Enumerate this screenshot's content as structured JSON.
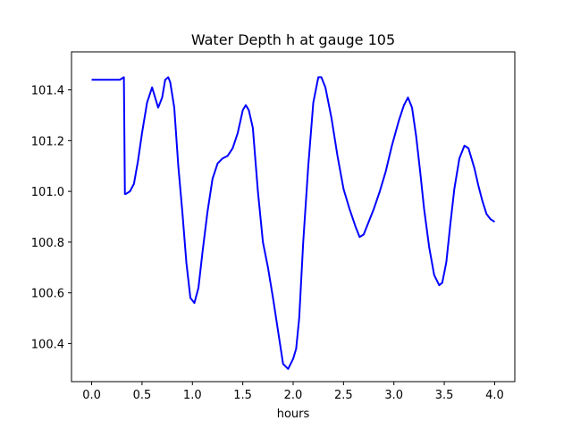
{
  "chart_data": {
    "type": "line",
    "title": "Water Depth h at gauge 105",
    "xlabel": "hours",
    "ylabel": "",
    "xlim": [
      -0.2,
      4.2
    ],
    "ylim": [
      100.25,
      101.55
    ],
    "grid": false,
    "legend": "none",
    "x_ticks": [
      0.0,
      0.5,
      1.0,
      1.5,
      2.0,
      2.5,
      3.0,
      3.5,
      4.0
    ],
    "x_tick_labels": [
      "0.0",
      "0.5",
      "1.0",
      "1.5",
      "2.0",
      "2.5",
      "3.0",
      "3.5",
      "4.0"
    ],
    "y_ticks": [
      100.4,
      100.6,
      100.8,
      101.0,
      101.2,
      101.4
    ],
    "y_tick_labels": [
      "100.4",
      "100.6",
      "100.8",
      "101.0",
      "101.2",
      "101.4"
    ],
    "series": [
      {
        "color": "#0000ff",
        "x": [
          0.0,
          0.1,
          0.2,
          0.28,
          0.32,
          0.33,
          0.34,
          0.38,
          0.42,
          0.46,
          0.5,
          0.55,
          0.6,
          0.63,
          0.66,
          0.7,
          0.73,
          0.76,
          0.78,
          0.82,
          0.86,
          0.9,
          0.94,
          0.98,
          1.02,
          1.06,
          1.1,
          1.15,
          1.2,
          1.25,
          1.3,
          1.35,
          1.4,
          1.45,
          1.5,
          1.53,
          1.56,
          1.6,
          1.65,
          1.7,
          1.75,
          1.8,
          1.85,
          1.9,
          1.95,
          2.0,
          2.03,
          2.06,
          2.1,
          2.15,
          2.2,
          2.25,
          2.28,
          2.32,
          2.38,
          2.44,
          2.5,
          2.56,
          2.62,
          2.66,
          2.7,
          2.75,
          2.8,
          2.86,
          2.92,
          2.98,
          3.05,
          3.1,
          3.14,
          3.18,
          3.22,
          3.26,
          3.3,
          3.35,
          3.4,
          3.45,
          3.48,
          3.52,
          3.56,
          3.6,
          3.65,
          3.7,
          3.74,
          3.77,
          3.8,
          3.84,
          3.88,
          3.92,
          3.96,
          4.0
        ],
        "y": [
          101.44,
          101.44,
          101.44,
          101.44,
          101.45,
          100.99,
          100.99,
          101.0,
          101.03,
          101.12,
          101.23,
          101.35,
          101.41,
          101.37,
          101.33,
          101.37,
          101.44,
          101.45,
          101.43,
          101.33,
          101.1,
          100.92,
          100.72,
          100.58,
          100.56,
          100.62,
          100.76,
          100.92,
          101.05,
          101.11,
          101.13,
          101.14,
          101.17,
          101.23,
          101.32,
          101.34,
          101.32,
          101.25,
          101.0,
          100.8,
          100.7,
          100.58,
          100.45,
          100.32,
          100.3,
          100.34,
          100.38,
          100.5,
          100.8,
          101.1,
          101.35,
          101.45,
          101.45,
          101.41,
          101.29,
          101.14,
          101.01,
          100.93,
          100.86,
          100.82,
          100.83,
          100.88,
          100.93,
          101.0,
          101.08,
          101.18,
          101.28,
          101.34,
          101.37,
          101.33,
          101.22,
          101.08,
          100.93,
          100.78,
          100.67,
          100.63,
          100.64,
          100.72,
          100.87,
          101.01,
          101.13,
          101.18,
          101.17,
          101.13,
          101.09,
          101.02,
          100.96,
          100.91,
          100.89,
          100.88
        ]
      }
    ]
  }
}
